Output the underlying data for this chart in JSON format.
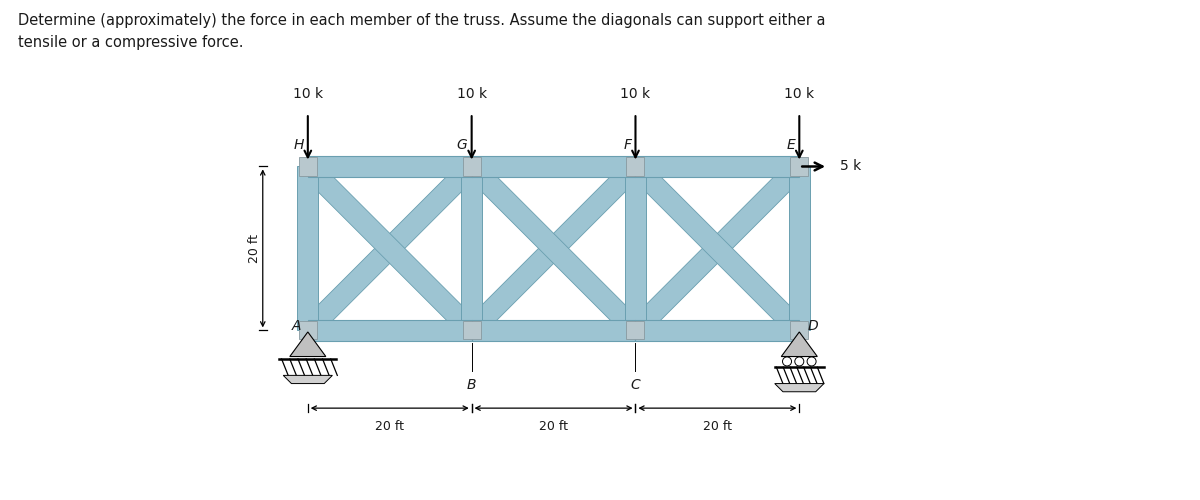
{
  "title_line1": "Determine (approximately) the force in each member of the truss. Assume the diagonals can support either a",
  "title_line2": "tensile or a compressive force.",
  "loads_top": [
    {
      "label": "10 k",
      "x": 0
    },
    {
      "label": "10 k",
      "x": 20
    },
    {
      "label": "10 k",
      "x": 40
    },
    {
      "label": "10 k",
      "x": 60
    }
  ],
  "horizontal_load_label": "5 k",
  "dim_labels": [
    "20 ft",
    "20 ft",
    "20 ft"
  ],
  "height_label": "20 ft",
  "top_nodes": [
    {
      "label": "H",
      "x": 0
    },
    {
      "label": "G",
      "x": 20
    },
    {
      "label": "F",
      "x": 40
    },
    {
      "label": "E",
      "x": 60
    }
  ],
  "bottom_nodes": [
    {
      "label": "A",
      "x": 0
    },
    {
      "label": "B",
      "x": 20
    },
    {
      "label": "C",
      "x": 40
    },
    {
      "label": "D",
      "x": 60
    }
  ],
  "truss_color": "#9dc4d2",
  "truss_edge_color": "#6a9fb0",
  "gusset_color": "#b8c8ce",
  "gusset_edge": "#8899a0",
  "background": "#ffffff",
  "text_color": "#1a1a1a",
  "support_color": "#888888"
}
